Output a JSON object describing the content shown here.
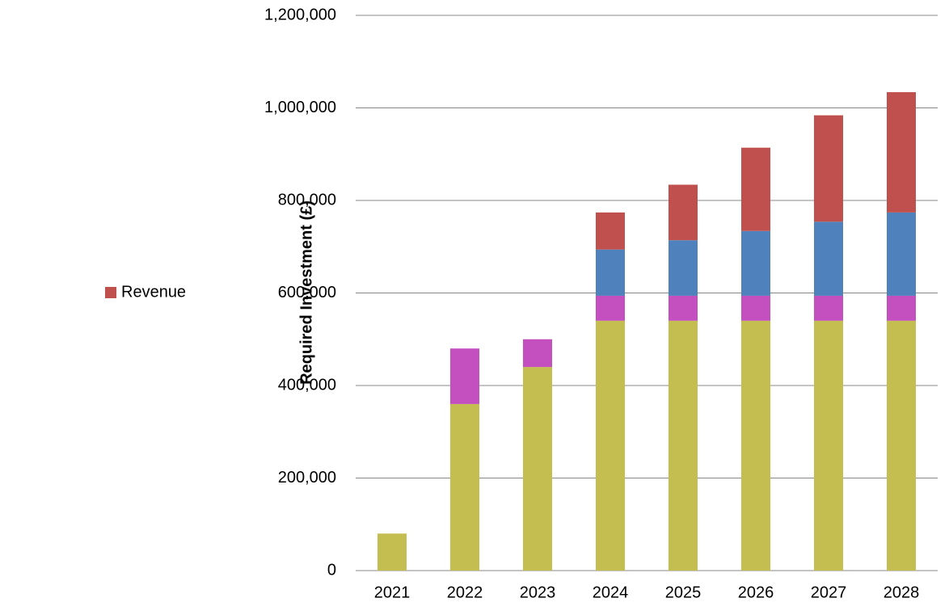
{
  "chart_data": {
    "type": "stacked-bar",
    "y_label": "Required Investment (£)",
    "categories": [
      "2021",
      "2022",
      "2023",
      "2024",
      "2025",
      "2026",
      "2027",
      "2028"
    ],
    "series": [
      {
        "color": "#c4bd4f",
        "values": [
          80000,
          360000,
          440000,
          540000,
          540000,
          540000,
          540000,
          540000
        ]
      },
      {
        "color": "#c44fbf",
        "values": [
          0,
          120000,
          60000,
          54000,
          54000,
          54000,
          54000,
          54000
        ]
      },
      {
        "color": "#4f81bd",
        "values": [
          0,
          0,
          0,
          100000,
          120000,
          140000,
          160000,
          180000
        ]
      },
      {
        "name": "Revenue",
        "color": "#c0504d",
        "values": [
          0,
          0,
          0,
          80000,
          120000,
          180000,
          230000,
          260000
        ]
      }
    ],
    "ylim": [
      0,
      1200000
    ],
    "yticks": [
      0,
      {
        "value": 200000,
        "label": "200,000"
      },
      {
        "value": 400000,
        "label": "400,000"
      },
      {
        "value": 600000,
        "label": "600,000"
      },
      {
        "value": 800000,
        "label": "800,000"
      },
      {
        "value": 1000000,
        "label": "1,000,000"
      },
      {
        "value": 1200000,
        "label": "1,200,000"
      }
    ],
    "grid": true
  }
}
